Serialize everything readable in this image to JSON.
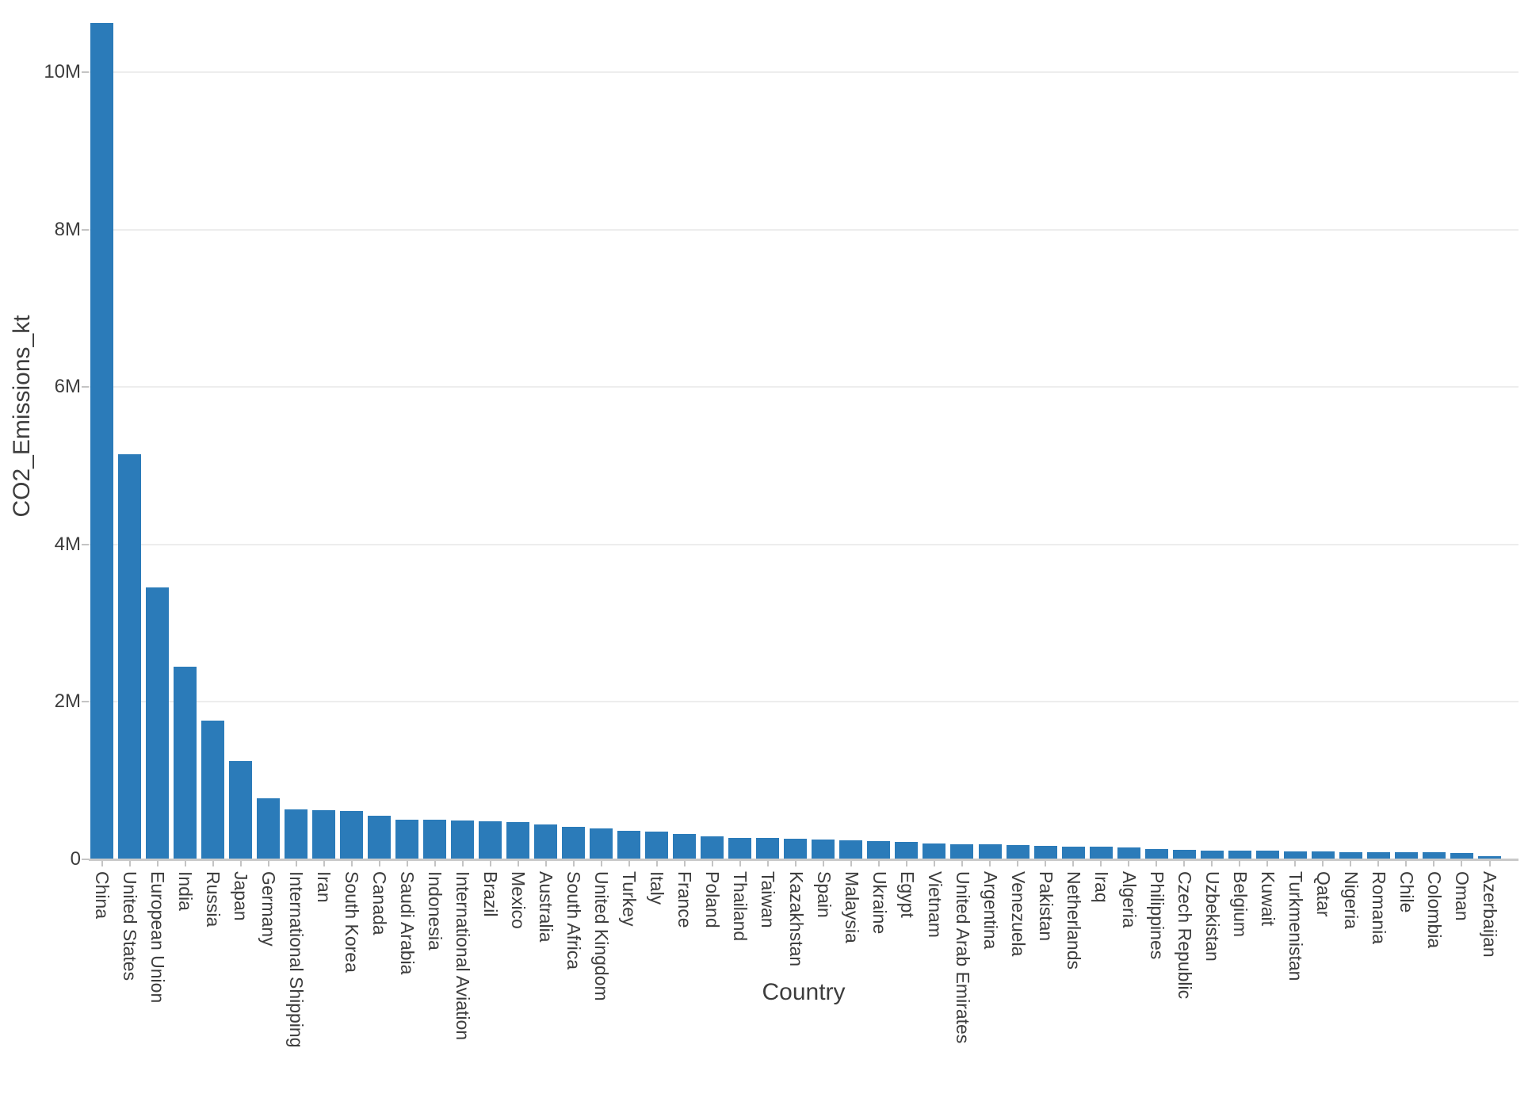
{
  "chart_data": {
    "type": "bar",
    "title": "",
    "xlabel": "Country",
    "ylabel": "CO2_Emissions_kt",
    "legend": null,
    "grid": "horizontal",
    "ylim": [
      0,
      10920000
    ],
    "yticks": [
      {
        "value": 0,
        "label": "0"
      },
      {
        "value": 2000000,
        "label": "2M"
      },
      {
        "value": 4000000,
        "label": "4M"
      },
      {
        "value": 6000000,
        "label": "6M"
      },
      {
        "value": 8000000,
        "label": "8M"
      },
      {
        "value": 10000000,
        "label": "10M"
      }
    ],
    "categories": [
      "China",
      "United States",
      "European Union",
      "India",
      "Russia",
      "Japan",
      "Germany",
      "International Shipping",
      "Iran",
      "South Korea",
      "Canada",
      "Saudi Arabia",
      "Indonesia",
      "International Aviation",
      "Brazil",
      "Mexico",
      "Australia",
      "South Africa",
      "United Kingdom",
      "Turkey",
      "Italy",
      "France",
      "Poland",
      "Thailand",
      "Taiwan",
      "Kazakhstan",
      "Spain",
      "Malaysia",
      "Ukraine",
      "Egypt",
      "Vietnam",
      "United Arab Emirates",
      "Argentina",
      "Venezuela",
      "Pakistan",
      "Netherlands",
      "Iraq",
      "Algeria",
      "Philippines",
      "Czech Republic",
      "Uzbekistan",
      "Belgium",
      "Kuwait",
      "Turkmenistan",
      "Qatar",
      "Nigeria",
      "Romania",
      "Chile",
      "Colombia",
      "Oman",
      "Azerbaijan"
    ],
    "values": [
      10625000,
      5150000,
      3460000,
      2445000,
      1760000,
      1245000,
      775000,
      640000,
      625000,
      610000,
      555000,
      508000,
      503000,
      499000,
      487000,
      470000,
      443000,
      416000,
      393000,
      360000,
      352000,
      322000,
      292000,
      275000,
      273000,
      259000,
      255000,
      245000,
      232000,
      225000,
      198000,
      196000,
      192000,
      182000,
      174000,
      164000,
      158000,
      148000,
      128000,
      120000,
      116000,
      112000,
      108000,
      104000,
      98000,
      96000,
      93000,
      91000,
      87000,
      81000,
      40000
    ],
    "style": {
      "bar_color": "#2b7bb9",
      "grid_color": "#ededed",
      "axis_line_color": "#c9c9c9",
      "tick_mark_color": "#c4c4c4",
      "text_color": "#3d3d3d",
      "background": "#ffffff"
    }
  }
}
